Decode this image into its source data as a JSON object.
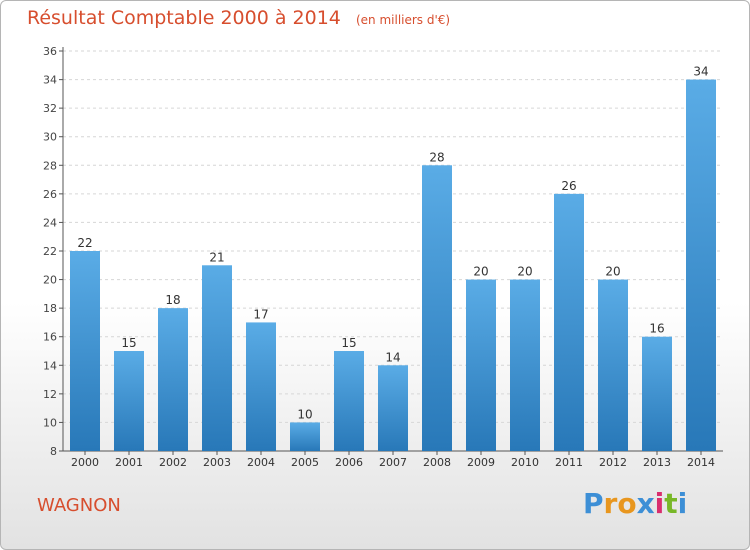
{
  "header": {
    "title": "Résultat Comptable 2000 à 2014",
    "unit": "(en milliers d'€)"
  },
  "footer": {
    "commune": "WAGNON",
    "logo_text": "Proxiti"
  },
  "colors": {
    "bar_top": "#5aace6",
    "bar_bottom": "#2878b8",
    "title": "#d74e2e",
    "logo_letters": [
      "#3d8fd6",
      "#e8961e",
      "#e8961e",
      "#3d8fd6",
      "#d92e6e",
      "#78b828",
      "#3d8fd6"
    ]
  },
  "chart_data": {
    "type": "bar",
    "title": "Résultat Comptable 2000 à 2014",
    "categories": [
      "2000",
      "2001",
      "2002",
      "2003",
      "2004",
      "2005",
      "2006",
      "2007",
      "2008",
      "2009",
      "2010",
      "2011",
      "2012",
      "2013",
      "2014"
    ],
    "values": [
      22,
      15,
      18,
      21,
      17,
      10,
      15,
      14,
      28,
      20,
      20,
      26,
      20,
      16,
      34
    ],
    "ylim": [
      8,
      36
    ],
    "yticks": [
      8,
      10,
      12,
      14,
      16,
      18,
      20,
      22,
      24,
      26,
      28,
      30,
      32,
      34,
      36
    ],
    "grid": true,
    "data_labels": true,
    "xlabel": "",
    "ylabel": ""
  }
}
